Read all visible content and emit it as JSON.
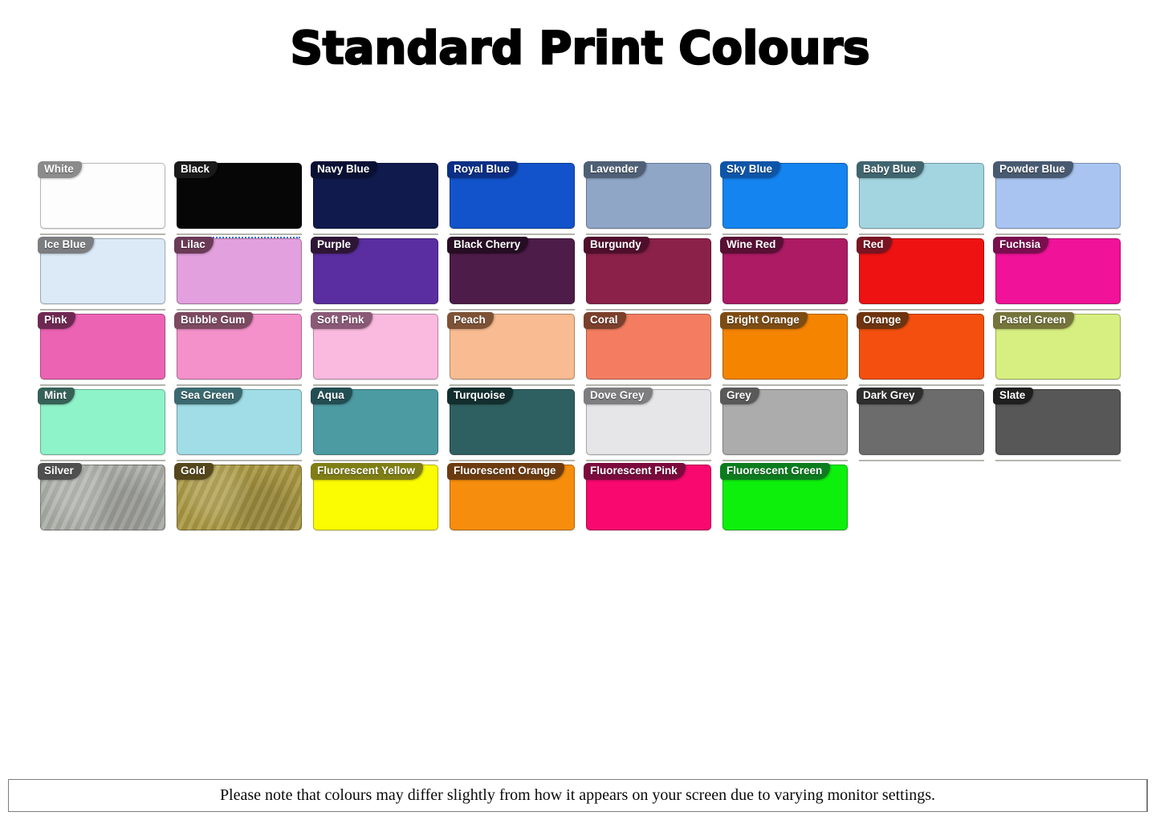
{
  "title": "Standard Print Colours",
  "footer": {
    "note": "Please note that colours may differ slightly from how it appears on your screen due to varying monitor settings."
  },
  "palette": {
    "rows": [
      {
        "swatches": [
          {
            "label": "White",
            "color": "#fdfdfd",
            "tag_color": "#8b8b8b"
          },
          {
            "label": "Black",
            "color": "#060606",
            "tag_color": "#1a1a1a"
          },
          {
            "label": "Navy Blue",
            "color": "#111a4d",
            "tag_color": "#0a1033"
          },
          {
            "label": "Royal Blue",
            "color": "#1253cb",
            "tag_color": "#0b2f85"
          },
          {
            "label": "Lavender",
            "color": "#8fa6c7",
            "tag_color": "#4f6076"
          },
          {
            "label": "Sky Blue",
            "color": "#1484f0",
            "tag_color": "#0d55a8"
          },
          {
            "label": "Baby Blue",
            "color": "#a2d5df",
            "tag_color": "#40656f"
          },
          {
            "label": "Powder Blue",
            "color": "#a9c4f0",
            "tag_color": "#485a70"
          }
        ]
      },
      {
        "swatches": [
          {
            "label": "Ice Blue",
            "color": "#dceaf8",
            "tag_color": "#7b7d80"
          },
          {
            "label": "Lilac",
            "color": "#e2a0de",
            "tag_color": "#6b3a57"
          },
          {
            "label": "Purple",
            "color": "#5a2ea0",
            "tag_color": "#2e1536"
          },
          {
            "label": "Black Cherry",
            "color": "#4e1c49",
            "tag_color": "#260d24"
          },
          {
            "label": "Burgundy",
            "color": "#8b2149",
            "tag_color": "#4f0f2c"
          },
          {
            "label": "Wine Red",
            "color": "#ad1b65",
            "tag_color": "#5a0f35"
          },
          {
            "label": "Red",
            "color": "#ee1212",
            "tag_color": "#791422"
          },
          {
            "label": "Fuchsia",
            "color": "#f01298",
            "tag_color": "#7a0e4e"
          }
        ]
      },
      {
        "swatches": [
          {
            "label": "Pink",
            "color": "#ed63b4",
            "tag_color": "#6e2952"
          },
          {
            "label": "Bubble Gum",
            "color": "#f491cb",
            "tag_color": "#7c4a61"
          },
          {
            "label": "Soft Pink",
            "color": "#fabadf",
            "tag_color": "#8a5977"
          },
          {
            "label": "Peach",
            "color": "#f8bb92",
            "tag_color": "#7d5236"
          },
          {
            "label": "Coral",
            "color": "#f47d61",
            "tag_color": "#7a402c"
          },
          {
            "label": "Bright Orange",
            "color": "#f58400",
            "tag_color": "#7d4c13"
          },
          {
            "label": "Orange",
            "color": "#f44f0e",
            "tag_color": "#6e340f"
          },
          {
            "label": "Pastel Green",
            "color": "#d7ef80",
            "tag_color": "#75743a"
          }
        ]
      },
      {
        "swatches": [
          {
            "label": "Mint",
            "color": "#8ff3c9",
            "tag_color": "#356157"
          },
          {
            "label": "Sea Green",
            "color": "#a0dde6",
            "tag_color": "#3a6a70"
          },
          {
            "label": "Aqua",
            "color": "#4c9ba2",
            "tag_color": "#224e53"
          },
          {
            "label": "Turquoise",
            "color": "#2f6061",
            "tag_color": "#132e2e"
          },
          {
            "label": "Dove Grey",
            "color": "#e6e6e8",
            "tag_color": "#7e7e80"
          },
          {
            "label": "Grey",
            "color": "#acacac",
            "tag_color": "#595959"
          },
          {
            "label": "Dark Grey",
            "color": "#6c6c6c",
            "tag_color": "#2d2d2d"
          },
          {
            "label": "Slate",
            "color": "#575757",
            "tag_color": "#1f1f1f"
          }
        ]
      },
      {
        "swatches": [
          {
            "label": "Silver",
            "color": "#acaea8",
            "tag_color": "#4f4f4f",
            "metallic": true
          },
          {
            "label": "Gold",
            "color": "#a99842",
            "tag_color": "#55471c",
            "metallic": true
          },
          {
            "label": "Fluorescent Yellow",
            "color": "#fbfb01",
            "tag_color": "#7f7e14"
          },
          {
            "label": "Fluorescent Orange",
            "color": "#f68d0c",
            "tag_color": "#6d3b10"
          },
          {
            "label": "Fluorescent Pink",
            "color": "#f8086f",
            "tag_color": "#7b0b3d"
          },
          {
            "label": "Fluorescent Green",
            "color": "#0cf00c",
            "tag_color": "#0c7c1e"
          }
        ]
      }
    ]
  }
}
